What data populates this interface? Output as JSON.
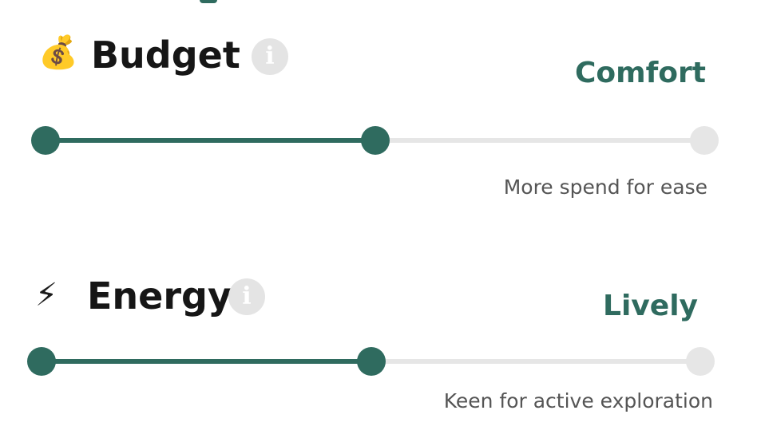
{
  "preferences": [
    {
      "icon": "money-bag-icon",
      "icon_glyph": "💰",
      "title": "Budget",
      "info_glyph": "i",
      "level_label": "Comfort",
      "level_description": "More spend for ease",
      "levels_count": 3,
      "selected_index": 1
    },
    {
      "icon": "lightning-icon",
      "icon_glyph": "⚡",
      "title": "Energy",
      "info_glyph": "i",
      "level_label": "Lively",
      "level_description": "Keen for active exploration",
      "levels_count": 3,
      "selected_index": 1
    }
  ],
  "colors": {
    "accent": "#2f6b5f",
    "track_inactive": "#e6e6e6",
    "info_badge": "#e4e4e4",
    "description_text": "#555555"
  }
}
